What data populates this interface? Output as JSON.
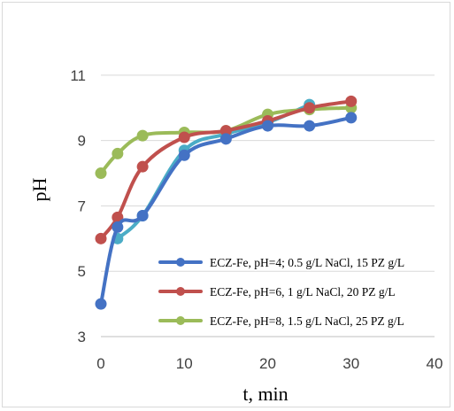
{
  "chart_data": {
    "type": "line",
    "xlabel": "t, min",
    "ylabel": "pH",
    "xlim": [
      0,
      40
    ],
    "ylim": [
      3,
      12
    ],
    "xticks": [
      0,
      10,
      20,
      30,
      40
    ],
    "yticks": [
      3,
      5,
      7,
      9,
      11
    ],
    "grid": "horizontal",
    "legend_position": "bottom-right inside",
    "series": [
      {
        "name": "ECZ-Fe, pH=4; 0.5 g/L NaCl, 15 PZ g/L",
        "color": "#4472C4",
        "x": [
          0,
          2,
          5,
          10,
          15,
          20,
          25,
          30
        ],
        "y": [
          4.0,
          6.35,
          6.7,
          8.55,
          9.05,
          9.45,
          9.45,
          9.7
        ]
      },
      {
        "name": "ECZ-Fe, pH=6, 1 g/L NaCl, 20 PZ g/L",
        "color": "#C0504D",
        "x": [
          0,
          2,
          5,
          10,
          15,
          20,
          25,
          30
        ],
        "y": [
          6.0,
          6.65,
          8.2,
          9.1,
          9.3,
          9.6,
          10.0,
          10.2
        ]
      },
      {
        "name": "ECZ-Fe, pH=8, 1.5 g/L NaCl, 25 PZ g/L",
        "color": "#9BBB59",
        "x": [
          0,
          2,
          5,
          10,
          15,
          20,
          25,
          30
        ],
        "y": [
          8.0,
          8.6,
          9.15,
          9.25,
          9.3,
          9.8,
          9.95,
          10.0
        ]
      },
      {
        "name": "",
        "color": "#4BACC6",
        "x": [
          2,
          5,
          10,
          15,
          20,
          25
        ],
        "y": [
          6.0,
          6.7,
          8.7,
          9.2,
          9.55,
          10.1
        ]
      }
    ]
  }
}
